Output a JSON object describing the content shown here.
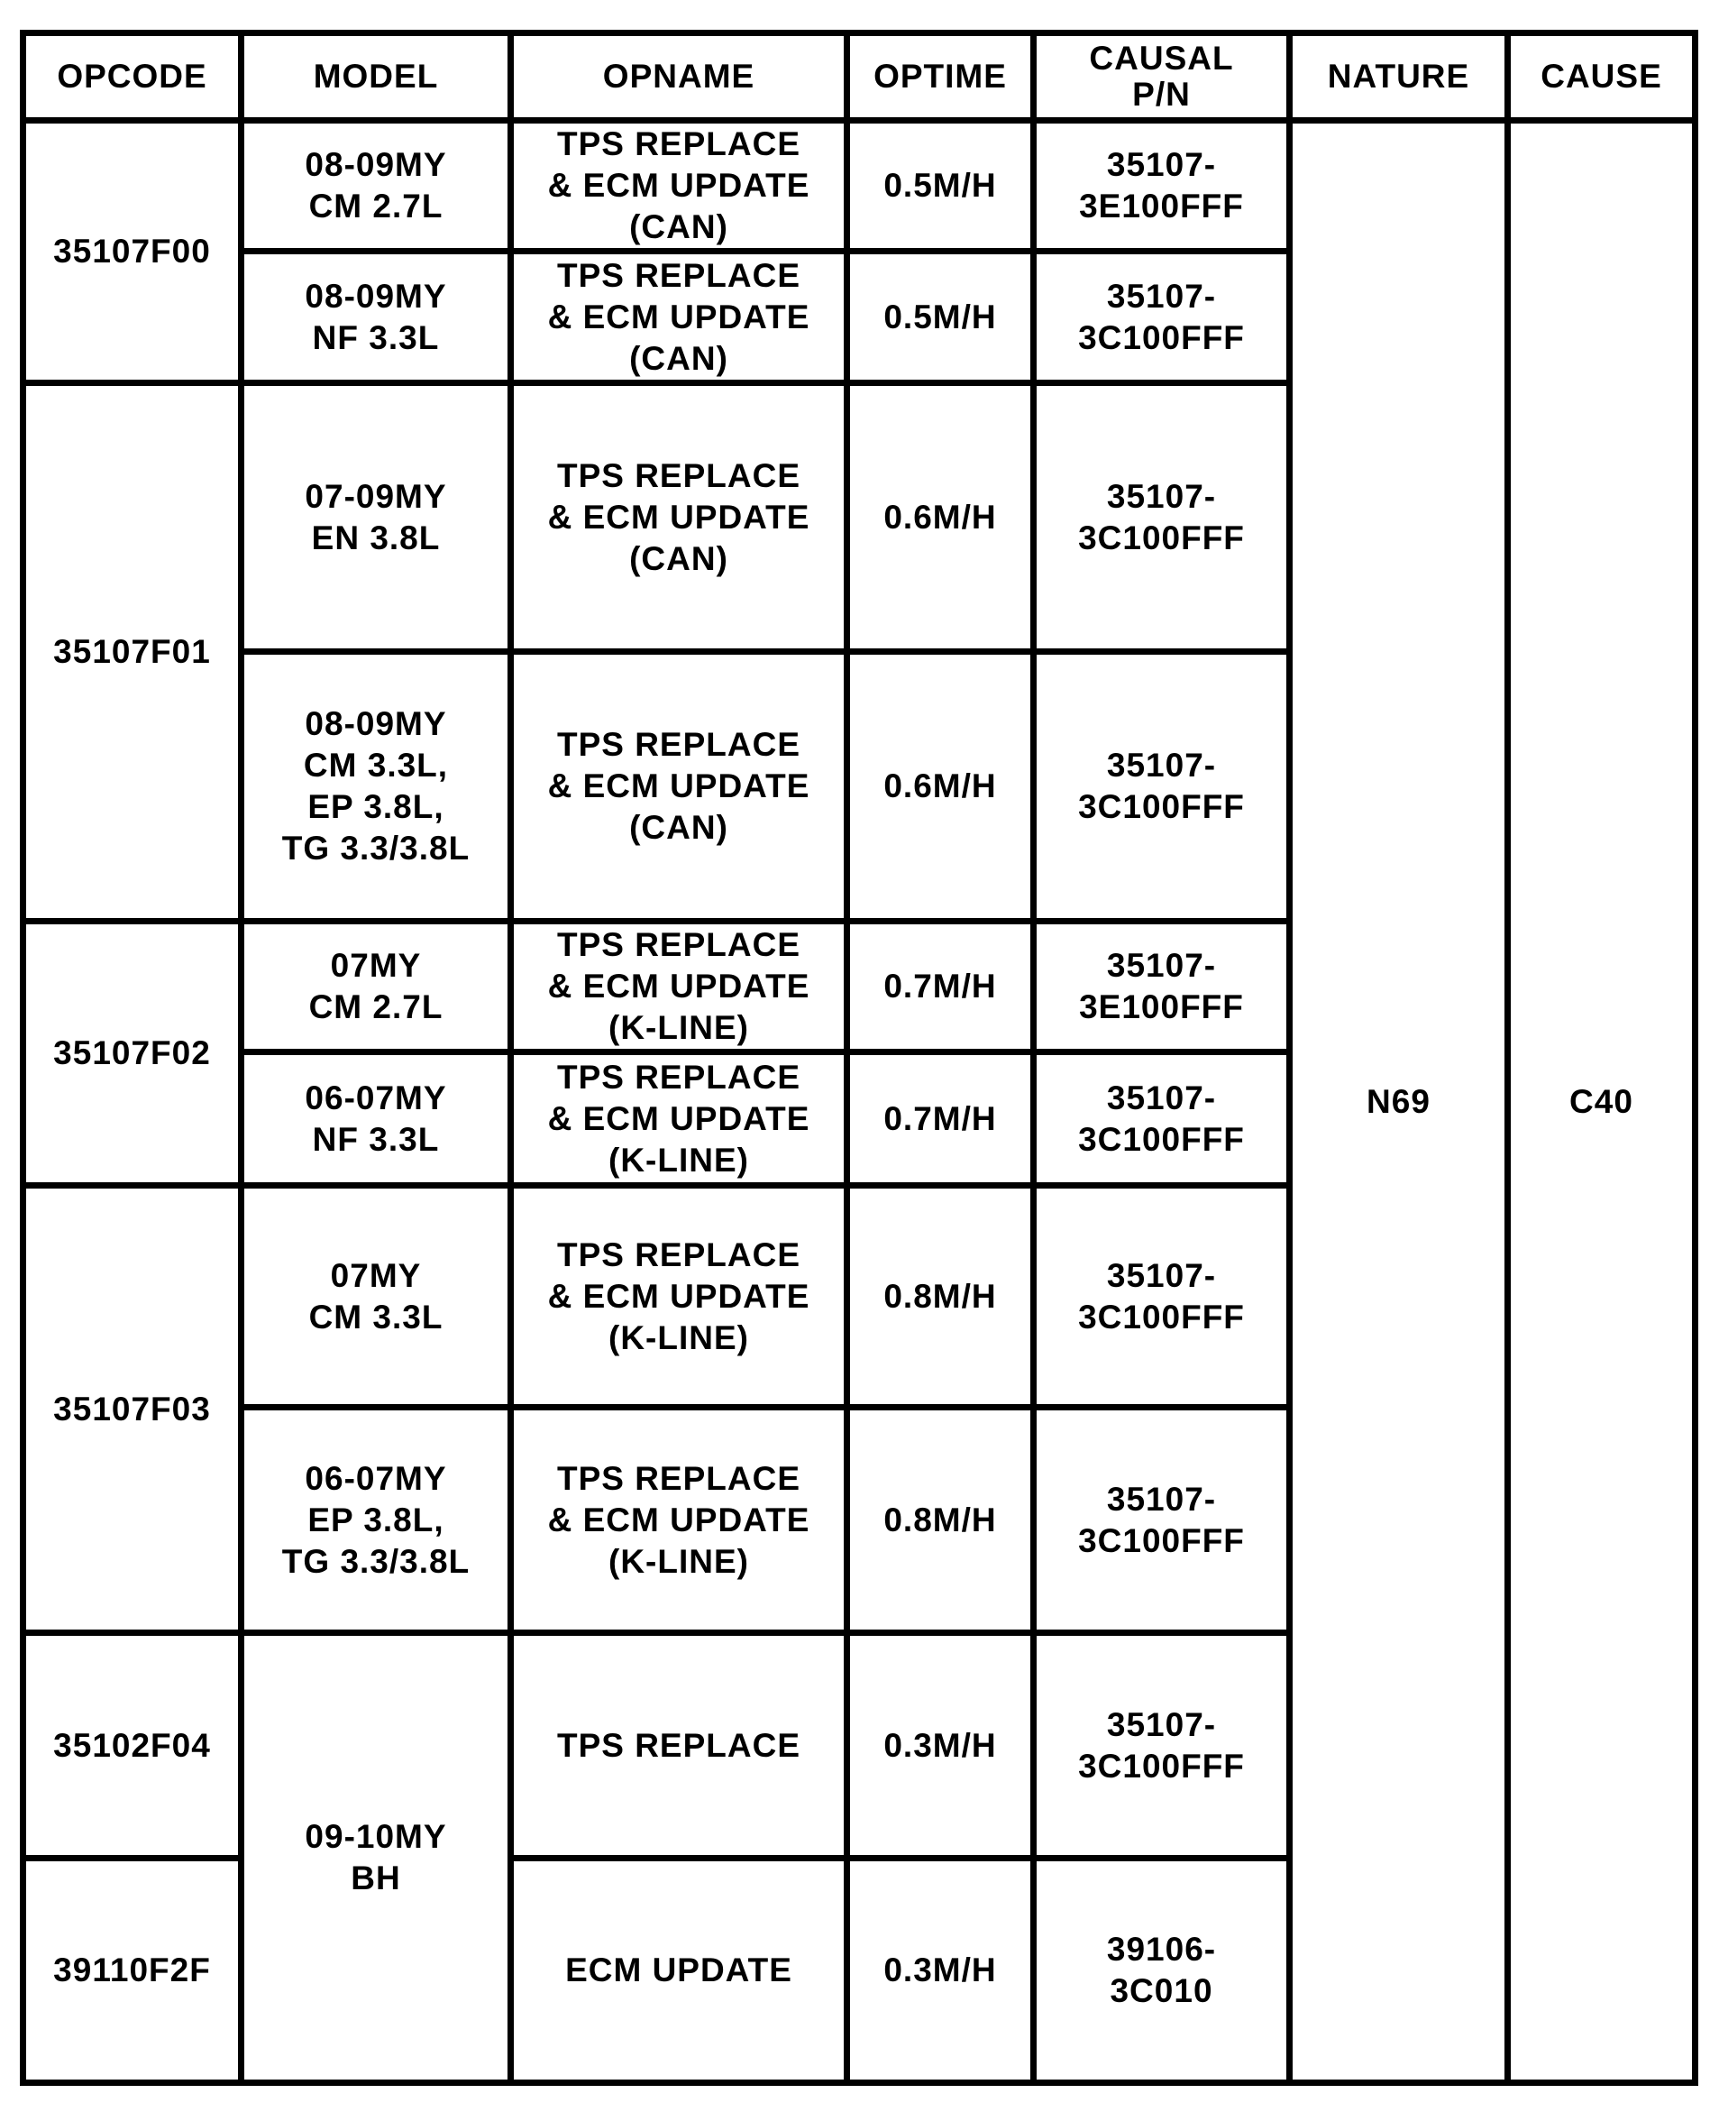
{
  "headers": [
    "OPCODE",
    "MODEL",
    "OPNAME",
    "OPTIME",
    "CAUSAL\nP/N",
    "NATURE",
    "CAUSE"
  ],
  "nature": "N69",
  "cause": "C40",
  "groups": [
    {
      "opcode": "35107F00",
      "rows": [
        {
          "model": "08-09MY\nCM 2.7L",
          "opname": "TPS REPLACE\n& ECM UPDATE\n(CAN)",
          "optime": "0.5M/H",
          "pn": "35107-\n3E100FFF"
        },
        {
          "model": "08-09MY\nNF 3.3L",
          "opname": "TPS REPLACE\n& ECM UPDATE\n(CAN)",
          "optime": "0.5M/H",
          "pn": "35107-\n3C100FFF"
        }
      ]
    },
    {
      "opcode": "35107F01",
      "rows": [
        {
          "model": "07-09MY\nEN 3.8L",
          "opname": "TPS REPLACE\n& ECM UPDATE\n(CAN)",
          "optime": "0.6M/H",
          "pn": "35107-\n3C100FFF"
        },
        {
          "model": "08-09MY\nCM 3.3L,\nEP 3.8L,\nTG 3.3/3.8L",
          "opname": "TPS REPLACE\n& ECM UPDATE\n(CAN)",
          "optime": "0.6M/H",
          "pn": "35107-\n3C100FFF"
        }
      ]
    },
    {
      "opcode": "35107F02",
      "rows": [
        {
          "model": "07MY\nCM 2.7L",
          "opname": "TPS REPLACE\n& ECM UPDATE\n(K-LINE)",
          "optime": "0.7M/H",
          "pn": "35107-\n3E100FFF"
        },
        {
          "model": "06-07MY\nNF 3.3L",
          "opname": "TPS REPLACE\n& ECM UPDATE\n(K-LINE)",
          "optime": "0.7M/H",
          "pn": "35107-\n3C100FFF"
        }
      ]
    },
    {
      "opcode": "35107F03",
      "rows": [
        {
          "model": "07MY\nCM 3.3L",
          "opname": "TPS REPLACE\n& ECM UPDATE\n(K-LINE)",
          "optime": "0.8M/H",
          "pn": "35107-\n3C100FFF"
        },
        {
          "model": "06-07MY\nEP 3.8L,\nTG 3.3/3.8L",
          "opname": "TPS REPLACE\n& ECM UPDATE\n(K-LINE)",
          "optime": "0.8M/H",
          "pn": "35107-\n3C100FFF"
        }
      ]
    }
  ],
  "bh_model": "09-10MY\nBH",
  "bh_rows": [
    {
      "opcode": "35102F04",
      "opname": "TPS REPLACE",
      "optime": "0.3M/H",
      "pn": "35107-\n3C100FFF"
    },
    {
      "opcode": "39110F2F",
      "opname": "ECM UPDATE",
      "optime": "0.3M/H",
      "pn": "39106-\n3C010"
    }
  ]
}
